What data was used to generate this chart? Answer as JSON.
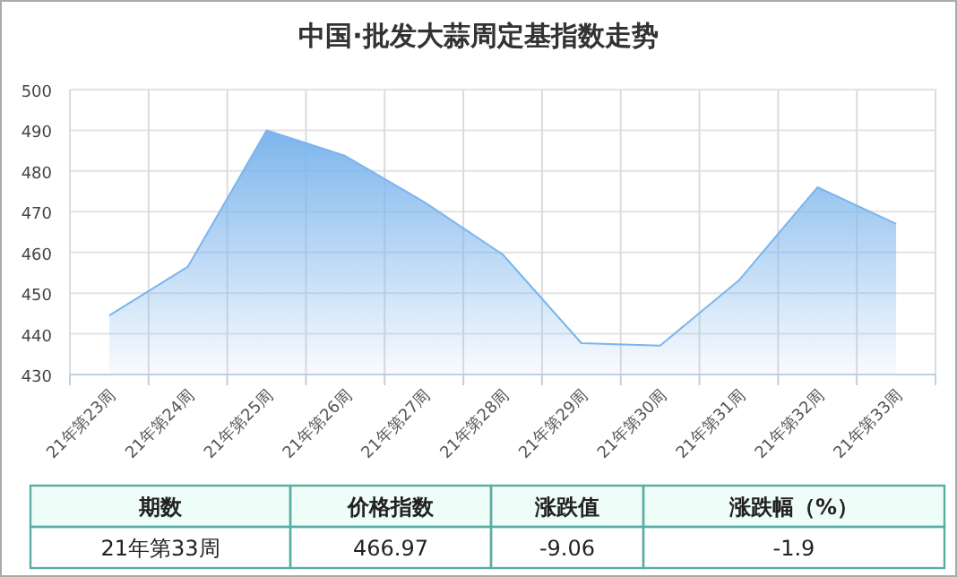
{
  "chart_data": {
    "type": "area",
    "title": "中国·批发大蒜周定基指数走势",
    "categories": [
      "21年第23周",
      "21年第24周",
      "21年第25周",
      "21年第26周",
      "21年第27周",
      "21年第28周",
      "21年第29周",
      "21年第30周",
      "21年第31周",
      "21年第32周",
      "21年第33周"
    ],
    "series": [
      {
        "color": "#7cb5ec",
        "values": [
          444.5,
          456.5,
          490.0,
          483.7,
          472.4,
          459.5,
          437.7,
          437.1,
          453.1,
          476.0,
          467.0
        ]
      }
    ],
    "ylim": [
      430,
      500
    ],
    "yticks": [
      430,
      440,
      450,
      460,
      470,
      480,
      490,
      500
    ],
    "grid": true,
    "annotations": [
      "期数",
      "价格指数",
      "涨跌值",
      "涨跌幅（%）",
      "21年第33周",
      "466.97",
      "-9.06",
      "-1.9"
    ]
  }
}
